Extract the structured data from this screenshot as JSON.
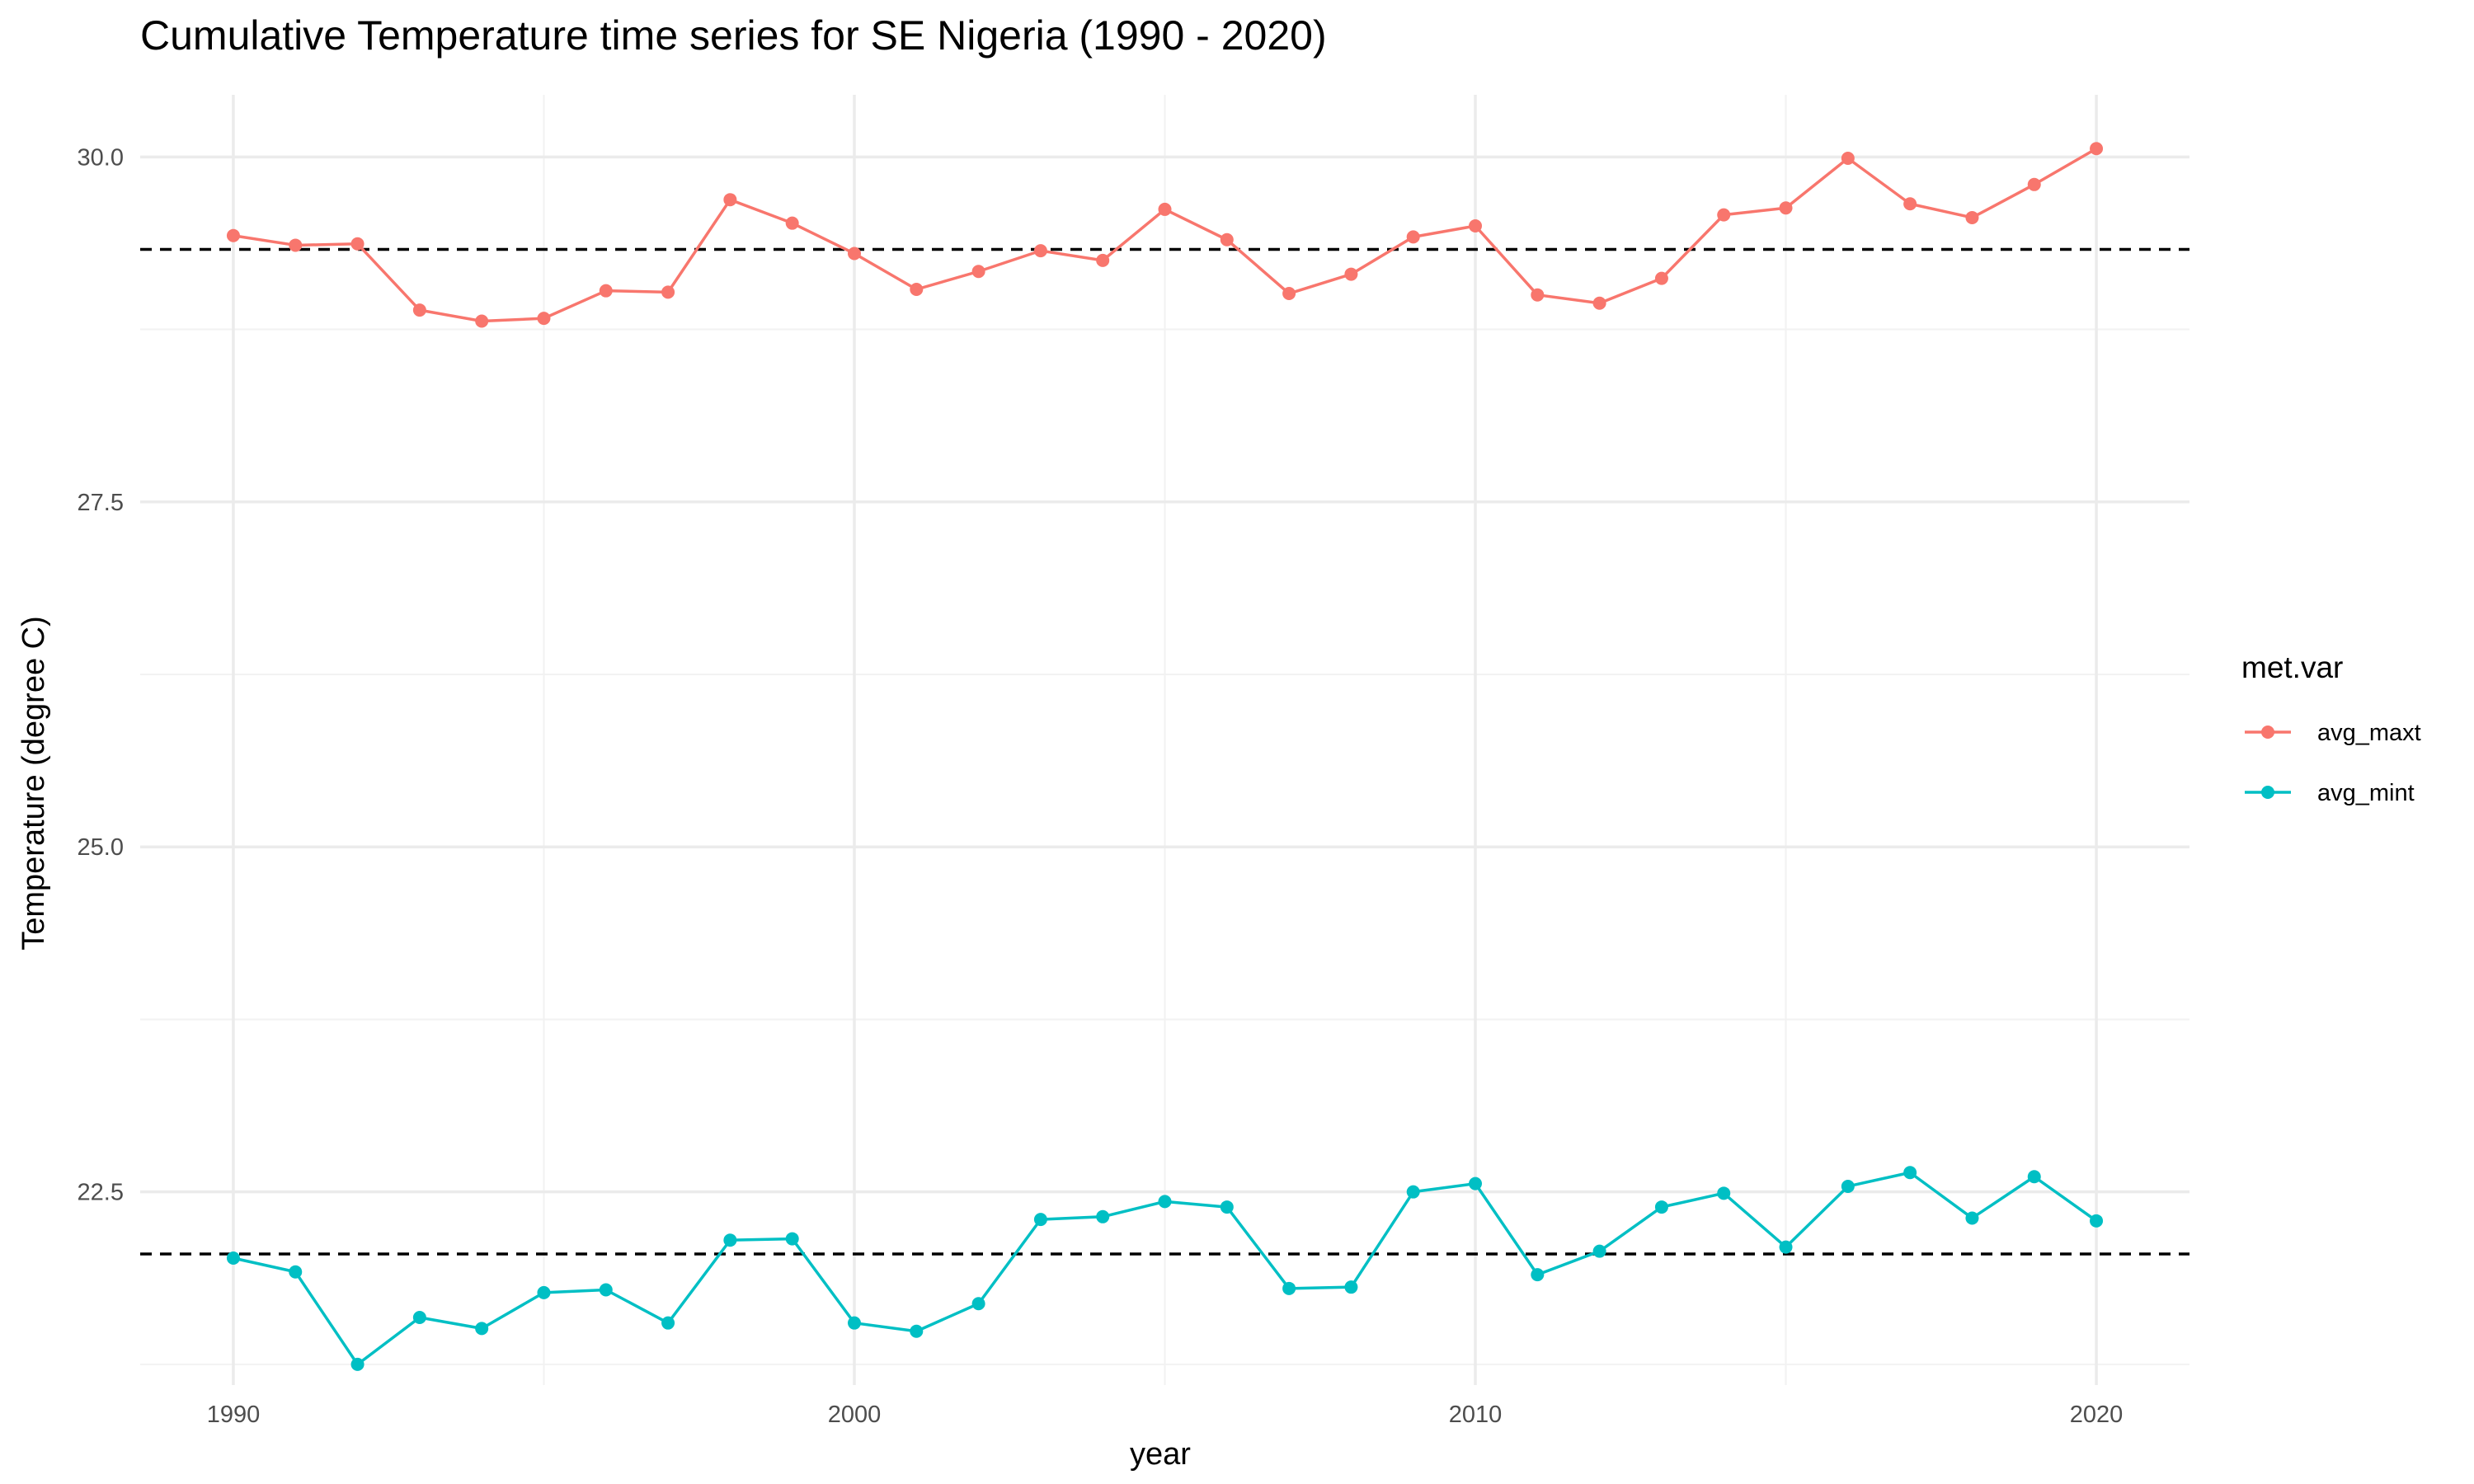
{
  "chart_data": {
    "type": "line",
    "title": "Cumulative Temperature time series for SE Nigeria (1990 - 2020)",
    "xlabel": "year",
    "ylabel": "Temperature (degree C)",
    "xlim": [
      1988.5,
      2021.5
    ],
    "ylim": [
      21.1,
      30.45
    ],
    "x_ticks": [
      1990,
      2000,
      2010,
      2020
    ],
    "y_ticks": [
      22.5,
      25.0,
      27.5,
      30.0
    ],
    "grid": true,
    "legend": {
      "title": "met.var",
      "position": "right"
    },
    "x": [
      1990,
      1991,
      1992,
      1993,
      1994,
      1995,
      1996,
      1997,
      1998,
      1999,
      2000,
      2001,
      2002,
      2003,
      2004,
      2005,
      2006,
      2007,
      2008,
      2009,
      2010,
      2011,
      2012,
      2013,
      2014,
      2015,
      2016,
      2017,
      2018,
      2019,
      2020
    ],
    "series": [
      {
        "name": "avg_maxt",
        "color": "#F8766D",
        "values": [
          29.43,
          29.36,
          29.37,
          28.89,
          28.81,
          28.83,
          29.03,
          29.02,
          29.69,
          29.52,
          29.3,
          29.04,
          29.17,
          29.32,
          29.25,
          29.62,
          29.4,
          29.01,
          29.15,
          29.42,
          29.5,
          29.0,
          28.94,
          29.12,
          29.58,
          29.63,
          29.99,
          29.66,
          29.56,
          29.8,
          30.06
        ],
        "mean_line": 29.33
      },
      {
        "name": "avg_mint",
        "color": "#00BFC4",
        "values": [
          22.02,
          21.92,
          21.25,
          21.59,
          21.51,
          21.77,
          21.79,
          21.55,
          22.15,
          22.16,
          21.55,
          21.49,
          21.69,
          22.3,
          22.32,
          22.43,
          22.39,
          21.8,
          21.81,
          22.5,
          22.56,
          21.9,
          22.07,
          22.39,
          22.49,
          22.1,
          22.54,
          22.64,
          22.31,
          22.61,
          22.29
        ],
        "mean_line": 22.05
      }
    ]
  }
}
